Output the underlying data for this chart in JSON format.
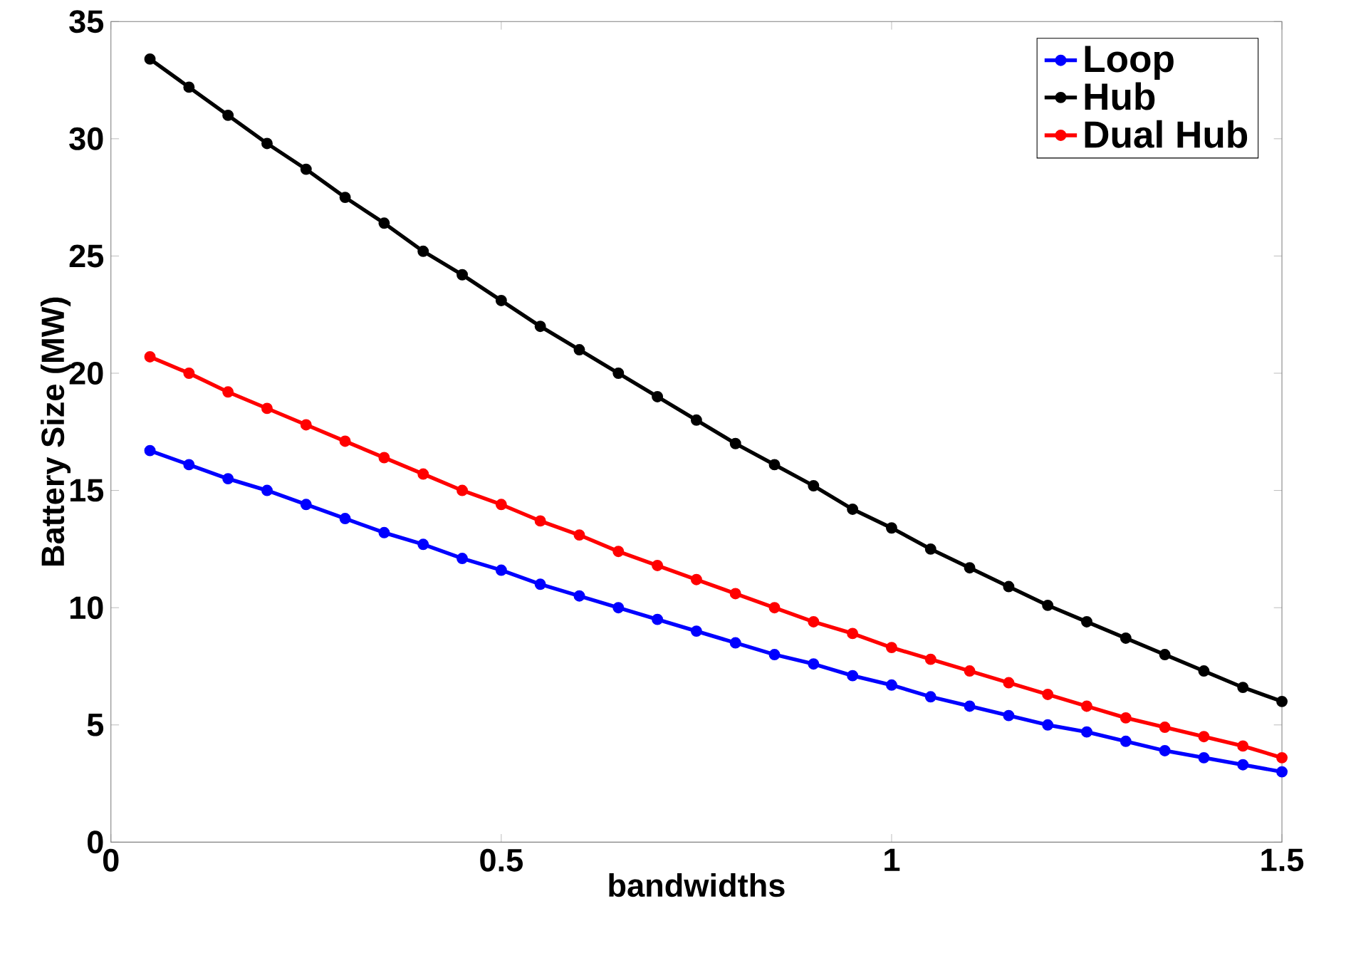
{
  "chart_data": {
    "type": "line",
    "xlabel": "bandwidths",
    "ylabel": "Battery Size (MW)",
    "x": [
      0.05,
      0.1,
      0.15,
      0.2,
      0.25,
      0.3,
      0.35,
      0.4,
      0.45,
      0.5,
      0.55,
      0.6,
      0.65,
      0.7,
      0.75,
      0.8,
      0.85,
      0.9,
      0.95,
      1.0,
      1.05,
      1.1,
      1.15,
      1.2,
      1.25,
      1.3,
      1.35,
      1.4,
      1.45,
      1.5
    ],
    "series": [
      {
        "name": "Loop",
        "color": "#0000ff",
        "values": [
          16.7,
          16.1,
          15.5,
          15.0,
          14.4,
          13.8,
          13.2,
          12.7,
          12.1,
          11.6,
          11.0,
          10.5,
          10.0,
          9.5,
          9.0,
          8.5,
          8.0,
          7.6,
          7.1,
          6.7,
          6.2,
          5.8,
          5.4,
          5.0,
          4.7,
          4.3,
          3.9,
          3.6,
          3.3,
          3.0
        ]
      },
      {
        "name": "Hub",
        "color": "#000000",
        "values": [
          33.4,
          32.2,
          31.0,
          29.8,
          28.7,
          27.5,
          26.4,
          25.2,
          24.2,
          23.1,
          22.0,
          21.0,
          20.0,
          19.0,
          18.0,
          17.0,
          16.1,
          15.2,
          14.2,
          13.4,
          12.5,
          11.7,
          10.9,
          10.1,
          9.4,
          8.7,
          8.0,
          7.3,
          6.6,
          6.0
        ]
      },
      {
        "name": "Dual Hub",
        "color": "#ff0000",
        "values": [
          20.7,
          20.0,
          19.2,
          18.5,
          17.8,
          17.1,
          16.4,
          15.7,
          15.0,
          14.4,
          13.7,
          13.1,
          12.4,
          11.8,
          11.2,
          10.6,
          10.0,
          9.4,
          8.9,
          8.3,
          7.8,
          7.3,
          6.8,
          6.3,
          5.8,
          5.3,
          4.9,
          4.5,
          4.1,
          3.6
        ]
      }
    ],
    "xlim": [
      0,
      1.5
    ],
    "xticks": [
      0,
      0.5,
      1,
      1.5
    ],
    "ylim": [
      0,
      35
    ],
    "yticks": [
      0,
      5,
      10,
      15,
      20,
      25,
      30,
      35
    ],
    "legend": "top right",
    "marker": "circle",
    "line_style": "solid",
    "grid": false
  }
}
